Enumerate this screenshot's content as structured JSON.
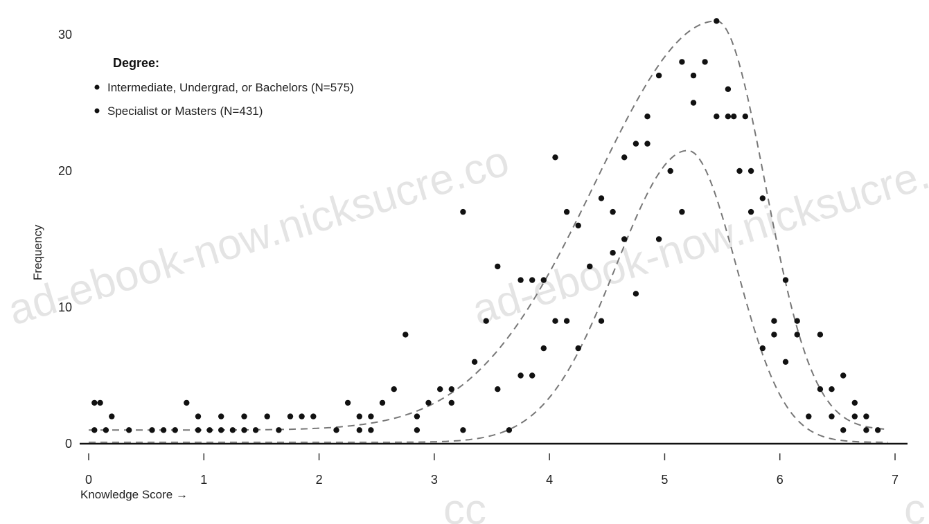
{
  "chart_data": {
    "type": "scatter",
    "title": "",
    "xlabel": "Knowledge Score →",
    "ylabel": "Frequency",
    "xlim": [
      0,
      7
    ],
    "ylim": [
      0,
      30
    ],
    "x_ticks": [
      "0",
      "1",
      "2",
      "3",
      "4",
      "5",
      "6",
      "7"
    ],
    "y_ticks": [
      "0",
      "10",
      "20",
      "30"
    ],
    "legend_title": "Degree:",
    "legend_position": "top-left",
    "grid": false,
    "series": [
      {
        "name": "Intermediate, Undergrad, or Bachelors (N=575)",
        "color": "#111111",
        "fit_curve": {
          "style": "dashed",
          "peak_x": 5.45,
          "peak_y": 31,
          "color": "#777777"
        },
        "points": [
          [
            0.05,
            1
          ],
          [
            0.15,
            1
          ],
          [
            0.35,
            1
          ],
          [
            0.55,
            1
          ],
          [
            0.65,
            1
          ],
          [
            0.75,
            1
          ],
          [
            0.95,
            2
          ],
          [
            1.05,
            1
          ],
          [
            1.15,
            1
          ],
          [
            1.25,
            1
          ],
          [
            1.35,
            1
          ],
          [
            1.55,
            2
          ],
          [
            1.65,
            1
          ],
          [
            1.75,
            2
          ],
          [
            1.85,
            2
          ],
          [
            1.95,
            2
          ],
          [
            2.15,
            1
          ],
          [
            2.25,
            3
          ],
          [
            2.35,
            2
          ],
          [
            2.45,
            2
          ],
          [
            2.55,
            3
          ],
          [
            2.65,
            4
          ],
          [
            2.75,
            8
          ],
          [
            2.85,
            1
          ],
          [
            2.95,
            3
          ],
          [
            3.05,
            4
          ],
          [
            3.15,
            4
          ],
          [
            3.25,
            17
          ],
          [
            3.35,
            6
          ],
          [
            3.45,
            9
          ],
          [
            3.55,
            13
          ],
          [
            3.75,
            12
          ],
          [
            3.85,
            12
          ],
          [
            3.95,
            12
          ],
          [
            4.05,
            21
          ],
          [
            4.15,
            9
          ],
          [
            4.25,
            16
          ],
          [
            4.35,
            13
          ],
          [
            4.45,
            18
          ],
          [
            4.55,
            17
          ],
          [
            4.65,
            21
          ],
          [
            4.75,
            22
          ],
          [
            4.85,
            24
          ],
          [
            4.95,
            27
          ],
          [
            5.15,
            28
          ],
          [
            5.25,
            27
          ],
          [
            5.35,
            28
          ],
          [
            5.45,
            31
          ],
          [
            5.55,
            26
          ],
          [
            5.6,
            24
          ],
          [
            5.7,
            24
          ],
          [
            5.75,
            20
          ],
          [
            5.85,
            18
          ],
          [
            5.95,
            9
          ],
          [
            6.05,
            12
          ],
          [
            6.15,
            9
          ],
          [
            6.25,
            2
          ],
          [
            6.35,
            8
          ],
          [
            6.45,
            4
          ],
          [
            6.55,
            5
          ],
          [
            6.65,
            3
          ],
          [
            6.75,
            2
          ],
          [
            6.85,
            1
          ]
        ]
      },
      {
        "name": "Specialist or Masters (N=431)",
        "color": "#111111",
        "fit_curve": {
          "style": "dashed",
          "peak_x": 5.2,
          "peak_y": 21.5,
          "color": "#777777"
        },
        "points": [
          [
            0.05,
            3
          ],
          [
            0.1,
            3
          ],
          [
            0.2,
            2
          ],
          [
            0.85,
            3
          ],
          [
            0.95,
            1
          ],
          [
            1.15,
            2
          ],
          [
            1.35,
            2
          ],
          [
            1.45,
            1
          ],
          [
            2.35,
            1
          ],
          [
            2.45,
            1
          ],
          [
            2.85,
            2
          ],
          [
            3.15,
            3
          ],
          [
            3.25,
            1
          ],
          [
            3.55,
            4
          ],
          [
            3.65,
            1
          ],
          [
            3.75,
            5
          ],
          [
            3.85,
            5
          ],
          [
            3.95,
            7
          ],
          [
            4.05,
            9
          ],
          [
            4.15,
            17
          ],
          [
            4.25,
            7
          ],
          [
            4.35,
            13
          ],
          [
            4.45,
            9
          ],
          [
            4.55,
            14
          ],
          [
            4.65,
            15
          ],
          [
            4.75,
            11
          ],
          [
            4.85,
            22
          ],
          [
            4.95,
            15
          ],
          [
            5.05,
            20
          ],
          [
            5.15,
            17
          ],
          [
            5.25,
            25
          ],
          [
            5.45,
            24
          ],
          [
            5.55,
            24
          ],
          [
            5.65,
            20
          ],
          [
            5.75,
            17
          ],
          [
            5.85,
            7
          ],
          [
            5.95,
            8
          ],
          [
            6.05,
            6
          ],
          [
            6.15,
            8
          ],
          [
            6.35,
            4
          ],
          [
            6.45,
            2
          ],
          [
            6.55,
            1
          ],
          [
            6.65,
            2
          ],
          [
            6.75,
            1
          ]
        ]
      }
    ]
  },
  "watermarks": [
    "ad-ebook-now.nicksucre.co",
    "ad-ebook-now.nicksucre.co",
    "cc",
    "c"
  ]
}
